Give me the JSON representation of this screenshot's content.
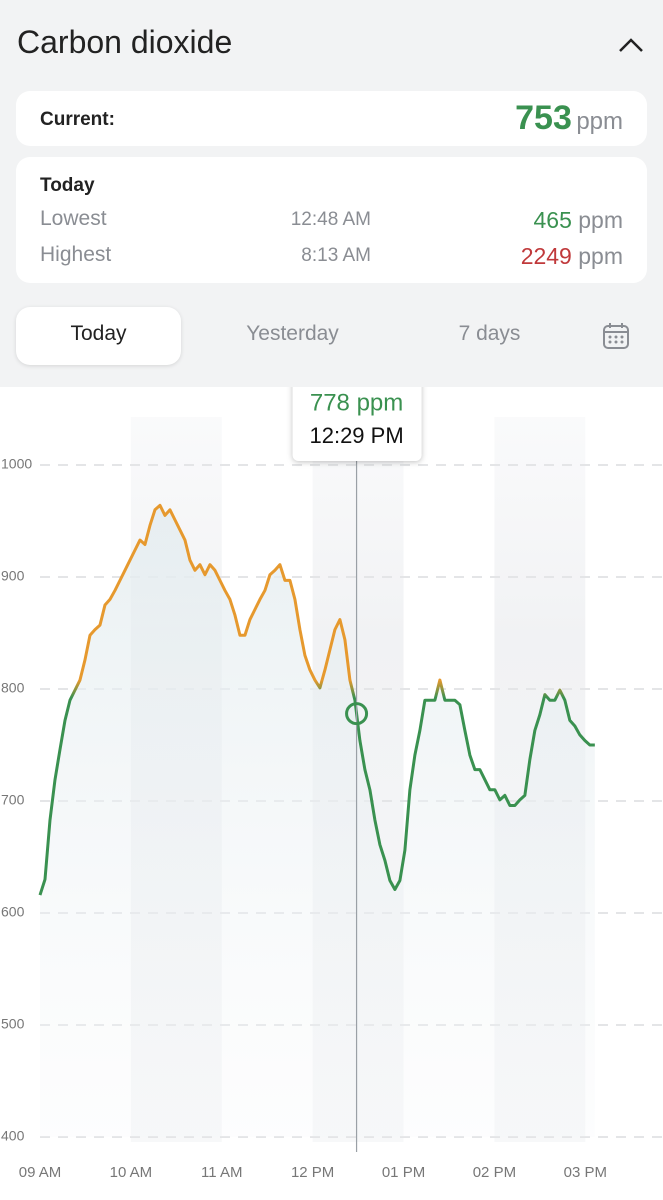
{
  "header": {
    "title": "Carbon dioxide"
  },
  "current": {
    "label": "Current:",
    "value": 753,
    "unit": "ppm"
  },
  "today": {
    "title": "Today",
    "rows": [
      {
        "label": "Lowest",
        "time": "12:48 AM",
        "value": 465,
        "unit": "ppm"
      },
      {
        "label": "Highest",
        "time": "8:13 AM",
        "value": 2249,
        "unit": "ppm"
      }
    ]
  },
  "tabs": [
    "Today",
    "Yesterday",
    "7 days"
  ],
  "chart_data": {
    "type": "line",
    "x": [
      9,
      9.055,
      9.11,
      9.165,
      9.22,
      9.275,
      9.33,
      9.385,
      9.44,
      9.495,
      9.55,
      9.605,
      9.66,
      9.715,
      9.77,
      9.825,
      9.88,
      9.935,
      9.99,
      10.045,
      10.1,
      10.155,
      10.21,
      10.265,
      10.32,
      10.375,
      10.43,
      10.485,
      10.54,
      10.595,
      10.65,
      10.705,
      10.76,
      10.815,
      10.87,
      10.925,
      10.98,
      11.035,
      11.09,
      11.145,
      11.2,
      11.255,
      11.31,
      11.365,
      11.42,
      11.475,
      11.53,
      11.585,
      11.64,
      11.695,
      11.75,
      11.805,
      11.86,
      11.915,
      11.97,
      12.025,
      12.08,
      12.135,
      12.19,
      12.245,
      12.3,
      12.355,
      12.41,
      12.465,
      12.52,
      12.575,
      12.63,
      12.685,
      12.74,
      12.795,
      12.85,
      12.905,
      12.96,
      13.015,
      13.07,
      13.125,
      13.18,
      13.235,
      13.29,
      13.345,
      13.4,
      13.455,
      13.51,
      13.565,
      13.62,
      13.675,
      13.73,
      13.785,
      13.84,
      13.895,
      13.95,
      14.005,
      14.06,
      14.115,
      14.17,
      14.225,
      14.28,
      14.335,
      14.39,
      14.445,
      14.5,
      14.555,
      14.61,
      14.665,
      14.72,
      14.775,
      14.83,
      14.885,
      14.94,
      14.995,
      15.05,
      15.105
    ],
    "values": [
      616,
      630,
      683,
      719,
      746,
      772,
      790,
      799,
      808,
      826,
      848,
      853,
      857,
      875,
      880,
      888,
      897,
      906,
      915,
      924,
      933,
      929,
      946,
      960,
      964,
      955,
      960,
      951,
      942,
      933,
      915,
      906,
      911,
      902,
      911,
      906,
      897,
      888,
      880,
      866,
      848,
      848,
      862,
      871,
      880,
      888,
      902,
      906,
      911,
      897,
      897,
      880,
      853,
      830,
      817,
      808,
      801,
      817,
      835,
      853,
      862,
      844,
      808,
      790,
      754,
      728,
      710,
      683,
      661,
      647,
      629,
      621,
      629,
      656,
      710,
      741,
      763,
      790,
      790,
      790,
      808,
      790,
      790,
      790,
      786,
      763,
      741,
      728,
      728,
      719,
      710,
      710,
      701,
      705,
      696,
      696,
      701,
      705,
      737,
      763,
      777,
      795,
      790,
      790,
      799,
      790,
      772,
      767,
      759,
      754,
      750,
      750
    ],
    "color": "#3a9150",
    "high_color": "#e6992e",
    "color_threshold": 800,
    "xlim": [
      9,
      15.8
    ],
    "xticks": [
      {
        "value": 9,
        "label": "09 AM"
      },
      {
        "value": 10,
        "label": "10 AM"
      },
      {
        "value": 11,
        "label": "11 AM"
      },
      {
        "value": 12,
        "label": "12 PM"
      },
      {
        "value": 13,
        "label": "01 PM"
      },
      {
        "value": 14,
        "label": "02 PM"
      },
      {
        "value": 15,
        "label": "03 PM"
      }
    ],
    "ylim": [
      400,
      1050
    ],
    "yticks": [
      400,
      500,
      600,
      700,
      800,
      900,
      1000
    ],
    "grid": true,
    "tooltip": {
      "x": 12.4833,
      "value": 778,
      "value_label": "778 ppm",
      "time_label": "12:29 PM"
    }
  }
}
